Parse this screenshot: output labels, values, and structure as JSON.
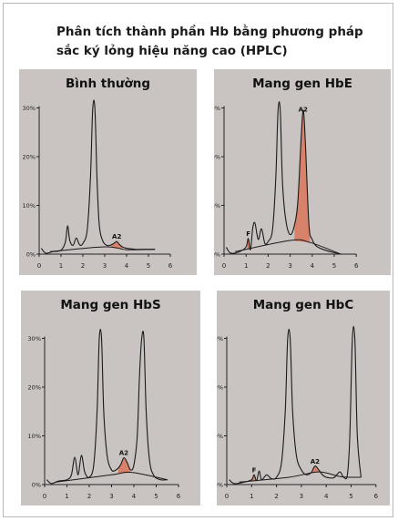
{
  "title": "Phân tích thành phần Hb bằng phương pháp sắc ký lỏng hiệu năng cao (HPLC)",
  "colors": {
    "panel_bg": "#c9c4c1",
    "peak_fill": "#d9826b",
    "curve": "#1a1a1a"
  },
  "chart_data": [
    {
      "type": "line",
      "title": "Bình thường",
      "xlim": [
        0,
        6
      ],
      "ylim": [
        0,
        30
      ],
      "xticks": [
        "0",
        "1",
        "2",
        "3",
        "4",
        "5",
        "6"
      ],
      "yticks": [
        "0%",
        "10%",
        "20%",
        "30%"
      ],
      "x": [
        0.1,
        0.3,
        0.6,
        1.0,
        1.2,
        1.3,
        1.4,
        1.55,
        1.7,
        1.85,
        2.0,
        2.2,
        2.35,
        2.45,
        2.55,
        2.65,
        2.75,
        2.9,
        3.1,
        3.3,
        3.45,
        3.55,
        3.65,
        3.8,
        4.0,
        4.4,
        4.8,
        5.3
      ],
      "y": [
        1.2,
        0.2,
        0.5,
        0.8,
        2.5,
        5.8,
        2.8,
        1.8,
        3.3,
        1.9,
        2.2,
        5.0,
        16.0,
        29.8,
        29.8,
        15.0,
        6.0,
        2.8,
        1.8,
        1.9,
        2.3,
        2.6,
        2.1,
        1.5,
        1.2,
        1.0,
        1.0,
        1.0
      ],
      "baseline": [
        [
          0.5,
          0.5
        ],
        [
          3.0,
          1.5
        ],
        [
          4.0,
          0.9
        ],
        [
          5.3,
          1.0
        ]
      ],
      "highlight": {
        "label": "A2",
        "x_range": [
          3.3,
          3.8
        ]
      }
    },
    {
      "type": "line",
      "title": "Mang gen HbE",
      "xlim": [
        0,
        6
      ],
      "ylim": [
        0,
        30
      ],
      "xticks": [
        "0",
        "1",
        "2",
        "3",
        "4",
        "5",
        "6"
      ],
      "yticks": [
        "0%",
        "10%",
        "20%",
        "30%"
      ],
      "x": [
        0.1,
        0.3,
        0.7,
        1.0,
        1.1,
        1.2,
        1.3,
        1.4,
        1.55,
        1.7,
        1.85,
        2.0,
        2.2,
        2.35,
        2.45,
        2.55,
        2.65,
        2.8,
        3.0,
        3.2,
        3.35,
        3.5,
        3.6,
        3.7,
        3.85,
        4.0,
        4.2,
        4.6,
        5.0,
        5.3
      ],
      "y": [
        1.4,
        0.2,
        0.5,
        1.5,
        3.2,
        0.9,
        5.3,
        6.4,
        3.0,
        5.2,
        2.2,
        2.6,
        5.0,
        16.0,
        29.5,
        29.5,
        15.0,
        7.0,
        4.0,
        6.0,
        11.0,
        24.0,
        29.5,
        22.0,
        6.0,
        3.0,
        1.6,
        0.8,
        0.3,
        0.0
      ],
      "baseline": [
        [
          0.5,
          0.5
        ],
        [
          3.0,
          2.8
        ],
        [
          3.9,
          2.4
        ],
        [
          5.3,
          0.0
        ]
      ],
      "highlight": {
        "label": "A2",
        "x_range": [
          3.2,
          3.9
        ]
      },
      "highlight_2": {
        "label": "F",
        "x_range": [
          1.05,
          1.2
        ]
      }
    },
    {
      "type": "line",
      "title": "Mang gen HbS",
      "xlim": [
        0,
        6
      ],
      "ylim": [
        0,
        30
      ],
      "xticks": [
        "0",
        "1",
        "2",
        "3",
        "4",
        "5",
        "6"
      ],
      "yticks": [
        "0%",
        "10%",
        "20%",
        "30%"
      ],
      "x": [
        0.1,
        0.3,
        0.6,
        1.0,
        1.2,
        1.35,
        1.5,
        1.65,
        1.8,
        2.0,
        2.2,
        2.35,
        2.45,
        2.55,
        2.65,
        2.8,
        3.0,
        3.2,
        3.4,
        3.55,
        3.7,
        3.85,
        4.0,
        4.15,
        4.25,
        4.35,
        4.45,
        4.55,
        4.7,
        4.9,
        5.2,
        5.5
      ],
      "y": [
        1.0,
        0.2,
        0.7,
        1.0,
        2.0,
        5.6,
        2.0,
        6.0,
        2.5,
        1.5,
        4.0,
        15.0,
        30.0,
        30.0,
        15.0,
        6.0,
        3.0,
        3.0,
        4.0,
        5.5,
        4.5,
        3.0,
        4.0,
        10.0,
        22.0,
        30.0,
        30.0,
        15.0,
        5.0,
        1.8,
        1.0,
        1.0
      ],
      "baseline": [
        [
          0.5,
          0.5
        ],
        [
          3.0,
          2.0
        ],
        [
          3.9,
          2.5
        ],
        [
          5.5,
          1.0
        ]
      ],
      "highlight": {
        "label": "A2",
        "x_range": [
          3.3,
          3.85
        ]
      }
    },
    {
      "type": "line",
      "title": "Mang gen HbC",
      "xlim": [
        0,
        6
      ],
      "ylim": [
        0,
        30
      ],
      "xticks": [
        "0",
        "1",
        "2",
        "3",
        "4",
        "5",
        "6"
      ],
      "yticks": [
        "0%",
        "10%",
        "20%",
        "30%"
      ],
      "x": [
        0.1,
        0.3,
        0.7,
        1.0,
        1.1,
        1.2,
        1.3,
        1.4,
        1.6,
        1.8,
        2.0,
        2.2,
        2.35,
        2.45,
        2.55,
        2.65,
        2.8,
        3.0,
        3.2,
        3.4,
        3.55,
        3.7,
        3.85,
        4.0,
        4.3,
        4.55,
        4.7,
        4.85,
        4.95,
        5.05,
        5.15,
        5.25,
        5.4
      ],
      "y": [
        1.0,
        0.2,
        0.5,
        1.0,
        2.0,
        0.8,
        2.8,
        1.0,
        2.0,
        1.2,
        1.5,
        4.5,
        15.0,
        30.0,
        30.0,
        15.0,
        6.0,
        3.0,
        2.0,
        2.5,
        3.8,
        3.0,
        2.0,
        1.5,
        1.4,
        2.6,
        1.5,
        2.0,
        10.0,
        30.0,
        30.0,
        10.0,
        1.5
      ],
      "baseline": [
        [
          0.5,
          0.5
        ],
        [
          2.5,
          1.5
        ],
        [
          3.7,
          2.6
        ],
        [
          4.6,
          1.6
        ],
        [
          5.4,
          1.5
        ]
      ],
      "highlight": {
        "label": "A2",
        "x_range": [
          3.3,
          3.85
        ]
      },
      "highlight_2": {
        "label": "F",
        "x_range": [
          1.0,
          1.15
        ]
      }
    }
  ]
}
